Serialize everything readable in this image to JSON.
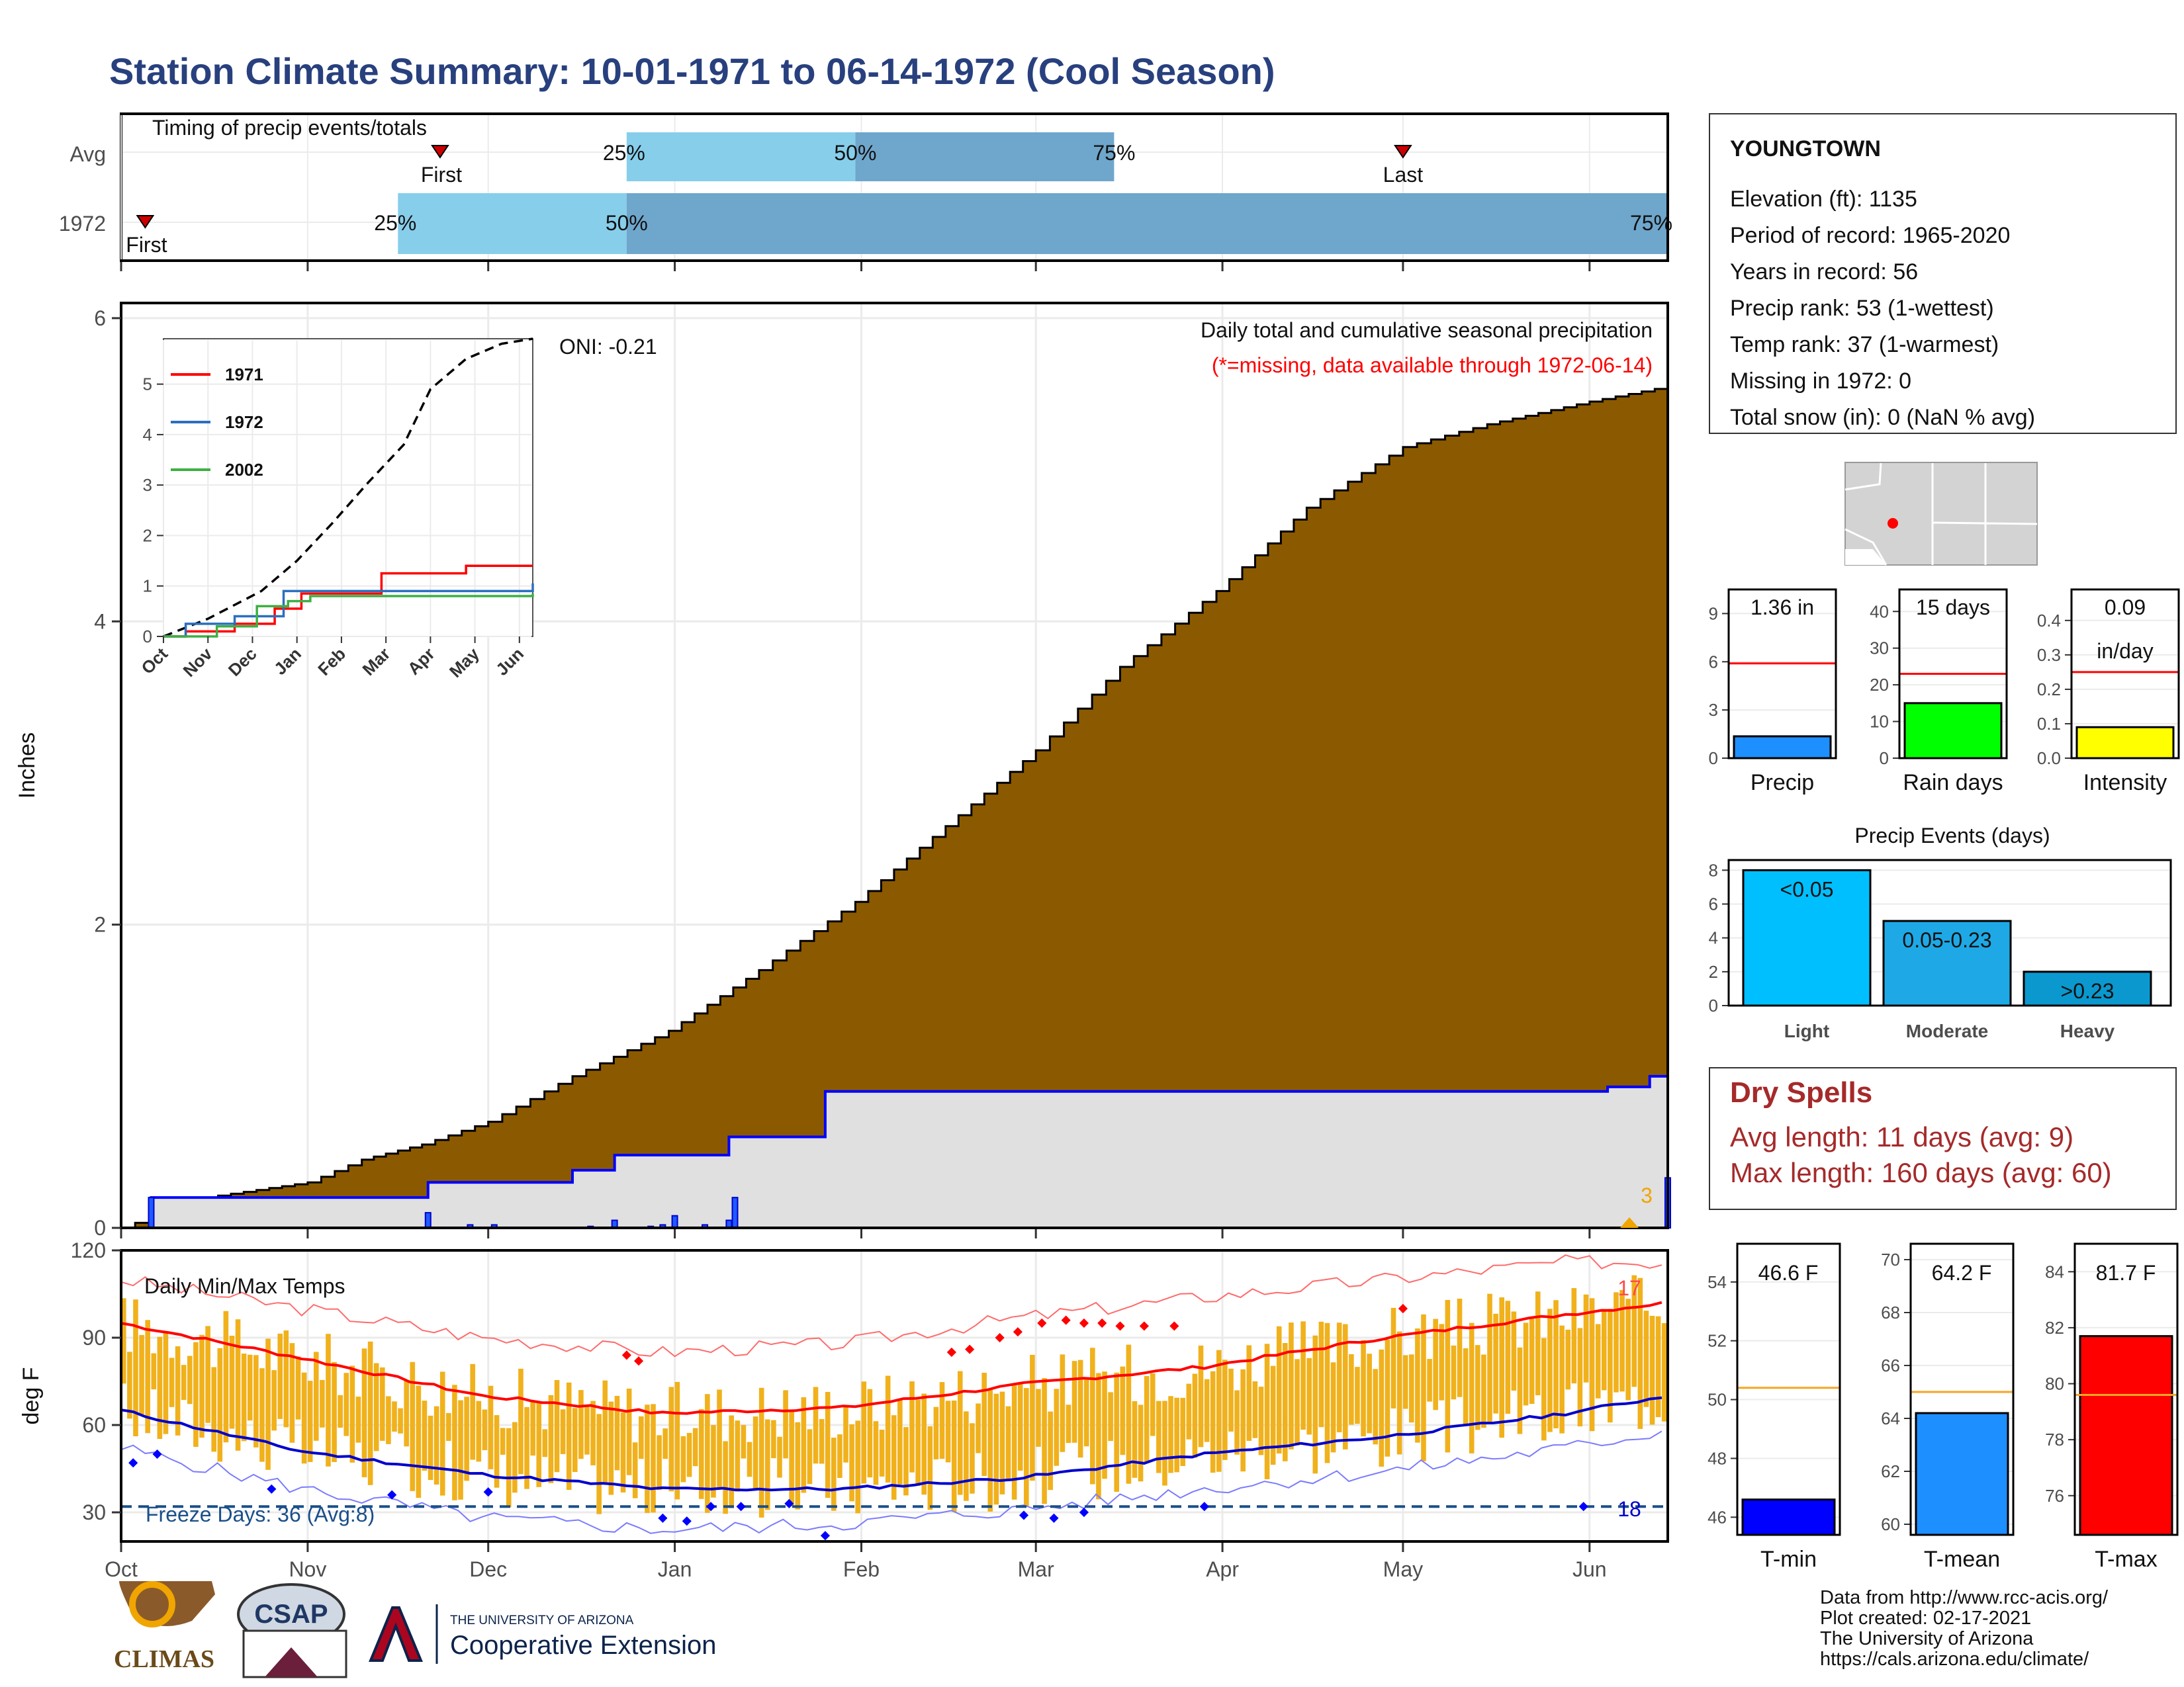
{
  "title": "Station Climate Summary: 10-01-1971 to 06-14-1972 (Cool Season)",
  "station": {
    "name": "YOUNGTOWN",
    "lines": [
      "Elevation (ft): 1135",
      "Period of record: 1965-2020",
      "Years in record: 56",
      "Precip rank: 53 (1-wettest)",
      "Temp rank: 37 (1-warmest)",
      "Missing in 1972: 0",
      "Total snow (in): 0 (NaN % avg)"
    ]
  },
  "colors": {
    "cumulative_fill": "#8b5a00",
    "avg_fill": "#e0e0e0",
    "blue_line": "#0000ff",
    "timing_light": "#87ceeb",
    "timing_dark": "#6fa6cc",
    "temp_bars": "#f0b11c",
    "tmax_line": "#ff0000",
    "title": "#28407e",
    "dry_spells": "#a52a2a"
  },
  "chart_data": [
    {
      "id": "timing",
      "type": "bar",
      "title": "Timing of precip events/totals",
      "categories": [
        "Avg",
        "1972"
      ],
      "bands": [
        {
          "row": "Avg",
          "start": "1971-12-24",
          "mid": "1972-01-31",
          "end": "1972-03-14",
          "first": "1971-11-23",
          "last": "1972-05-01",
          "labels": [
            "25%",
            "50%",
            "75%"
          ],
          "first_label": "First",
          "last_label": "Last"
        },
        {
          "row": "1972",
          "start": "1971-11-16",
          "mid": "1971-12-24",
          "end": "1972-06-14",
          "first": "1971-10-05",
          "labels": [
            "25%",
            "50%",
            "75%"
          ],
          "first_label": "First"
        }
      ]
    },
    {
      "id": "precip",
      "type": "area",
      "title": "Daily total and cumulative seasonal precipitation",
      "subtitle": "(*=missing, data available through 1972-06-14)",
      "annotation": "ONI: -0.21",
      "ylabel": "Inches",
      "yticks": [
        0,
        2,
        4,
        6
      ],
      "ylim": [
        0,
        6.1
      ],
      "cumulative": [
        [
          "1971-10-01",
          0.0
        ],
        [
          "1971-10-08",
          0.1
        ],
        [
          "1971-10-15",
          0.2
        ],
        [
          "1971-11-01",
          0.3
        ],
        [
          "1971-11-10",
          0.45
        ],
        [
          "1971-11-20",
          0.55
        ],
        [
          "1971-12-01",
          0.7
        ],
        [
          "1971-12-15",
          1.0
        ],
        [
          "1971-12-31",
          1.3
        ],
        [
          "1972-01-15",
          1.7
        ],
        [
          "1972-01-31",
          2.15
        ],
        [
          "1972-02-15",
          2.65
        ],
        [
          "1972-03-01",
          3.15
        ],
        [
          "1972-03-15",
          3.7
        ],
        [
          "1972-03-31",
          4.2
        ],
        [
          "1972-04-15",
          4.75
        ],
        [
          "1972-05-01",
          5.15
        ],
        [
          "1972-05-15",
          5.3
        ],
        [
          "1972-06-01",
          5.45
        ],
        [
          "1972-06-14",
          5.55
        ]
      ],
      "observed_cumulative": [
        [
          "1971-10-01",
          0.0
        ],
        [
          "1971-10-06",
          0.2
        ],
        [
          "1971-11-20",
          0.2
        ],
        [
          "1971-11-21",
          0.3
        ],
        [
          "1971-12-15",
          0.38
        ],
        [
          "1971-12-22",
          0.48
        ],
        [
          "1972-01-10",
          0.6
        ],
        [
          "1972-01-26",
          0.9
        ],
        [
          "1972-06-04",
          0.93
        ],
        [
          "1972-06-11",
          1.0
        ],
        [
          "1972-06-14",
          1.36
        ]
      ],
      "daily_bars": [
        [
          "1971-10-06",
          0.2
        ],
        [
          "1971-11-21",
          0.1
        ],
        [
          "1971-11-28",
          0.02
        ],
        [
          "1971-12-02",
          0.02
        ],
        [
          "1971-12-18",
          0.01
        ],
        [
          "1971-12-22",
          0.05
        ],
        [
          "1971-12-28",
          0.01
        ],
        [
          "1971-12-30",
          0.02
        ],
        [
          "1972-01-01",
          0.08
        ],
        [
          "1972-01-06",
          0.02
        ],
        [
          "1972-01-10",
          0.05
        ],
        [
          "1972-01-11",
          0.2
        ],
        [
          "1972-06-14",
          0.33
        ]
      ],
      "snow_marker": {
        "label": "3"
      }
    },
    {
      "id": "inset",
      "type": "line",
      "x_ticks": [
        "Oct",
        "Nov",
        "Dec",
        "Jan",
        "Feb",
        "Mar",
        "Apr",
        "May",
        "Jun"
      ],
      "yticks": [
        0,
        1,
        2,
        3,
        4,
        5
      ],
      "ylim": [
        0,
        5.9
      ],
      "series": [
        {
          "name": "1971",
          "color": "#ff0000",
          "values": [
            [
              0,
              0.0
            ],
            [
              0.5,
              0.1
            ],
            [
              1.6,
              0.25
            ],
            [
              2.5,
              0.55
            ],
            [
              3.1,
              0.85
            ],
            [
              4.5,
              0.85
            ],
            [
              4.9,
              1.25
            ],
            [
              6.8,
              1.4
            ],
            [
              8.3,
              1.4
            ]
          ]
        },
        {
          "name": "1972",
          "color": "#2b6fbf",
          "values": [
            [
              0,
              0.0
            ],
            [
              0.5,
              0.25
            ],
            [
              1.6,
              0.4
            ],
            [
              2.7,
              0.9
            ],
            [
              8.1,
              0.9
            ],
            [
              8.3,
              1.05
            ]
          ]
        },
        {
          "name": "2002",
          "color": "#3cb043",
          "values": [
            [
              0,
              0.0
            ],
            [
              1.2,
              0.2
            ],
            [
              2.1,
              0.6
            ],
            [
              2.8,
              0.7
            ],
            [
              3.3,
              0.8
            ],
            [
              8.3,
              0.85
            ]
          ]
        }
      ],
      "average": [
        [
          0,
          0
        ],
        [
          1.0,
          0.35
        ],
        [
          2.2,
          0.9
        ],
        [
          3.0,
          1.5
        ],
        [
          3.8,
          2.25
        ],
        [
          4.6,
          3.05
        ],
        [
          5.4,
          3.8
        ],
        [
          6.0,
          4.9
        ],
        [
          6.8,
          5.5
        ],
        [
          7.6,
          5.8
        ],
        [
          8.3,
          5.9
        ]
      ]
    },
    {
      "id": "temps",
      "type": "bar",
      "title": "Daily Min/Max Temps",
      "ylabel": "deg F",
      "yticks": [
        30,
        60,
        90,
        120
      ],
      "ylim": [
        20,
        120
      ],
      "x_ticks": [
        "Oct",
        "Nov",
        "Dec",
        "Jan",
        "Feb",
        "Mar",
        "Apr",
        "May",
        "Jun"
      ],
      "freeze_label": "Freeze Days: 36 (Avg:8)",
      "record_high_count": "17",
      "record_low_count": "18",
      "freeze_line": 32,
      "avg_tmax": [
        [
          0,
          95
        ],
        [
          30,
          83
        ],
        [
          60,
          70
        ],
        [
          90,
          64
        ],
        [
          120,
          66
        ],
        [
          150,
          74
        ],
        [
          180,
          80
        ],
        [
          210,
          90
        ],
        [
          240,
          98
        ],
        [
          257,
          102
        ]
      ],
      "avg_tmin": [
        [
          0,
          65
        ],
        [
          30,
          51
        ],
        [
          60,
          43
        ],
        [
          90,
          38
        ],
        [
          120,
          38
        ],
        [
          150,
          42
        ],
        [
          180,
          50
        ],
        [
          210,
          56
        ],
        [
          240,
          64
        ],
        [
          257,
          70
        ]
      ],
      "record_max": [
        [
          0,
          110
        ],
        [
          30,
          100
        ],
        [
          60,
          90
        ],
        [
          90,
          85
        ],
        [
          120,
          88
        ],
        [
          150,
          97
        ],
        [
          180,
          104
        ],
        [
          210,
          110
        ],
        [
          240,
          116
        ],
        [
          257,
          116
        ]
      ],
      "record_min": [
        [
          0,
          52
        ],
        [
          30,
          38
        ],
        [
          60,
          28
        ],
        [
          90,
          24
        ],
        [
          120,
          26
        ],
        [
          150,
          31
        ],
        [
          180,
          38
        ],
        [
          210,
          44
        ],
        [
          240,
          52
        ],
        [
          257,
          58
        ]
      ]
    },
    {
      "id": "precip_totals",
      "type": "bar",
      "categories": [
        "Precip",
        "Rain days",
        "Intensity"
      ],
      "panels": [
        {
          "label": "Precip",
          "value": 1.36,
          "avg": 5.9,
          "ylim": [
            0,
            10.5
          ],
          "yticks": [
            0,
            3,
            6,
            9
          ],
          "display": "1.36 in",
          "color": "#1e8fff"
        },
        {
          "label": "Rain days",
          "value": 15,
          "avg": 23,
          "ylim": [
            0,
            46
          ],
          "yticks": [
            0,
            10,
            20,
            30,
            40
          ],
          "display": "15 days",
          "color": "#00ff00"
        },
        {
          "label": "Intensity",
          "value": 0.09,
          "avg": 0.25,
          "ylim": [
            0,
            0.49
          ],
          "yticks": [
            0.0,
            0.1,
            0.2,
            0.3,
            0.4
          ],
          "display": "0.09",
          "display2": "in/day",
          "color": "#ffff00"
        }
      ]
    },
    {
      "id": "precip_events",
      "type": "bar",
      "title": "Precip Events (days)",
      "categories": [
        "Light",
        "Moderate",
        "Heavy"
      ],
      "values": [
        8,
        5,
        2
      ],
      "bar_labels": [
        "<0.05",
        "0.05-0.23",
        ">0.23"
      ],
      "yticks": [
        0,
        2,
        4,
        6,
        8
      ],
      "ylim": [
        0,
        8.6
      ],
      "colors": [
        "#00bfff",
        "#1ea9e6",
        "#0a98cf"
      ]
    },
    {
      "id": "temp_totals",
      "type": "bar",
      "categories": [
        "T-min",
        "T-mean",
        "T-max"
      ],
      "panels": [
        {
          "label": "T-min",
          "value": 46.6,
          "avg": 50.4,
          "ylim": [
            45.4,
            55.3
          ],
          "yticks": [
            46,
            48,
            50,
            52,
            54
          ],
          "display": "46.6 F",
          "color": "#0000ff"
        },
        {
          "label": "T-mean",
          "value": 64.2,
          "avg": 65.0,
          "ylim": [
            59.6,
            70.6
          ],
          "yticks": [
            60,
            62,
            64,
            66,
            68,
            70
          ],
          "display": "64.2 F",
          "color": "#1e8fff"
        },
        {
          "label": "T-max",
          "value": 81.7,
          "avg": 79.6,
          "ylim": [
            74.6,
            85.0
          ],
          "yticks": [
            76,
            78,
            80,
            82,
            84
          ],
          "display": "81.7 F",
          "color": "#ff0000"
        }
      ]
    }
  ],
  "dry_spells": {
    "title": "Dry Spells",
    "avg_line": "Avg length: 11 days (avg: 9)",
    "max_line": "Max length: 160 days (avg: 60)"
  },
  "footer": {
    "lines": [
      "Data from http://www.rcc-acis.org/",
      "Plot created: 02-17-2021",
      "The University of Arizona",
      "https://cals.arizona.edu/climate/"
    ]
  },
  "logos": {
    "climas": "CLIMAS",
    "csap": "CSAP",
    "ua_small": "THE UNIVERSITY OF ARIZONA",
    "ua_big": "Cooperative Extension"
  }
}
